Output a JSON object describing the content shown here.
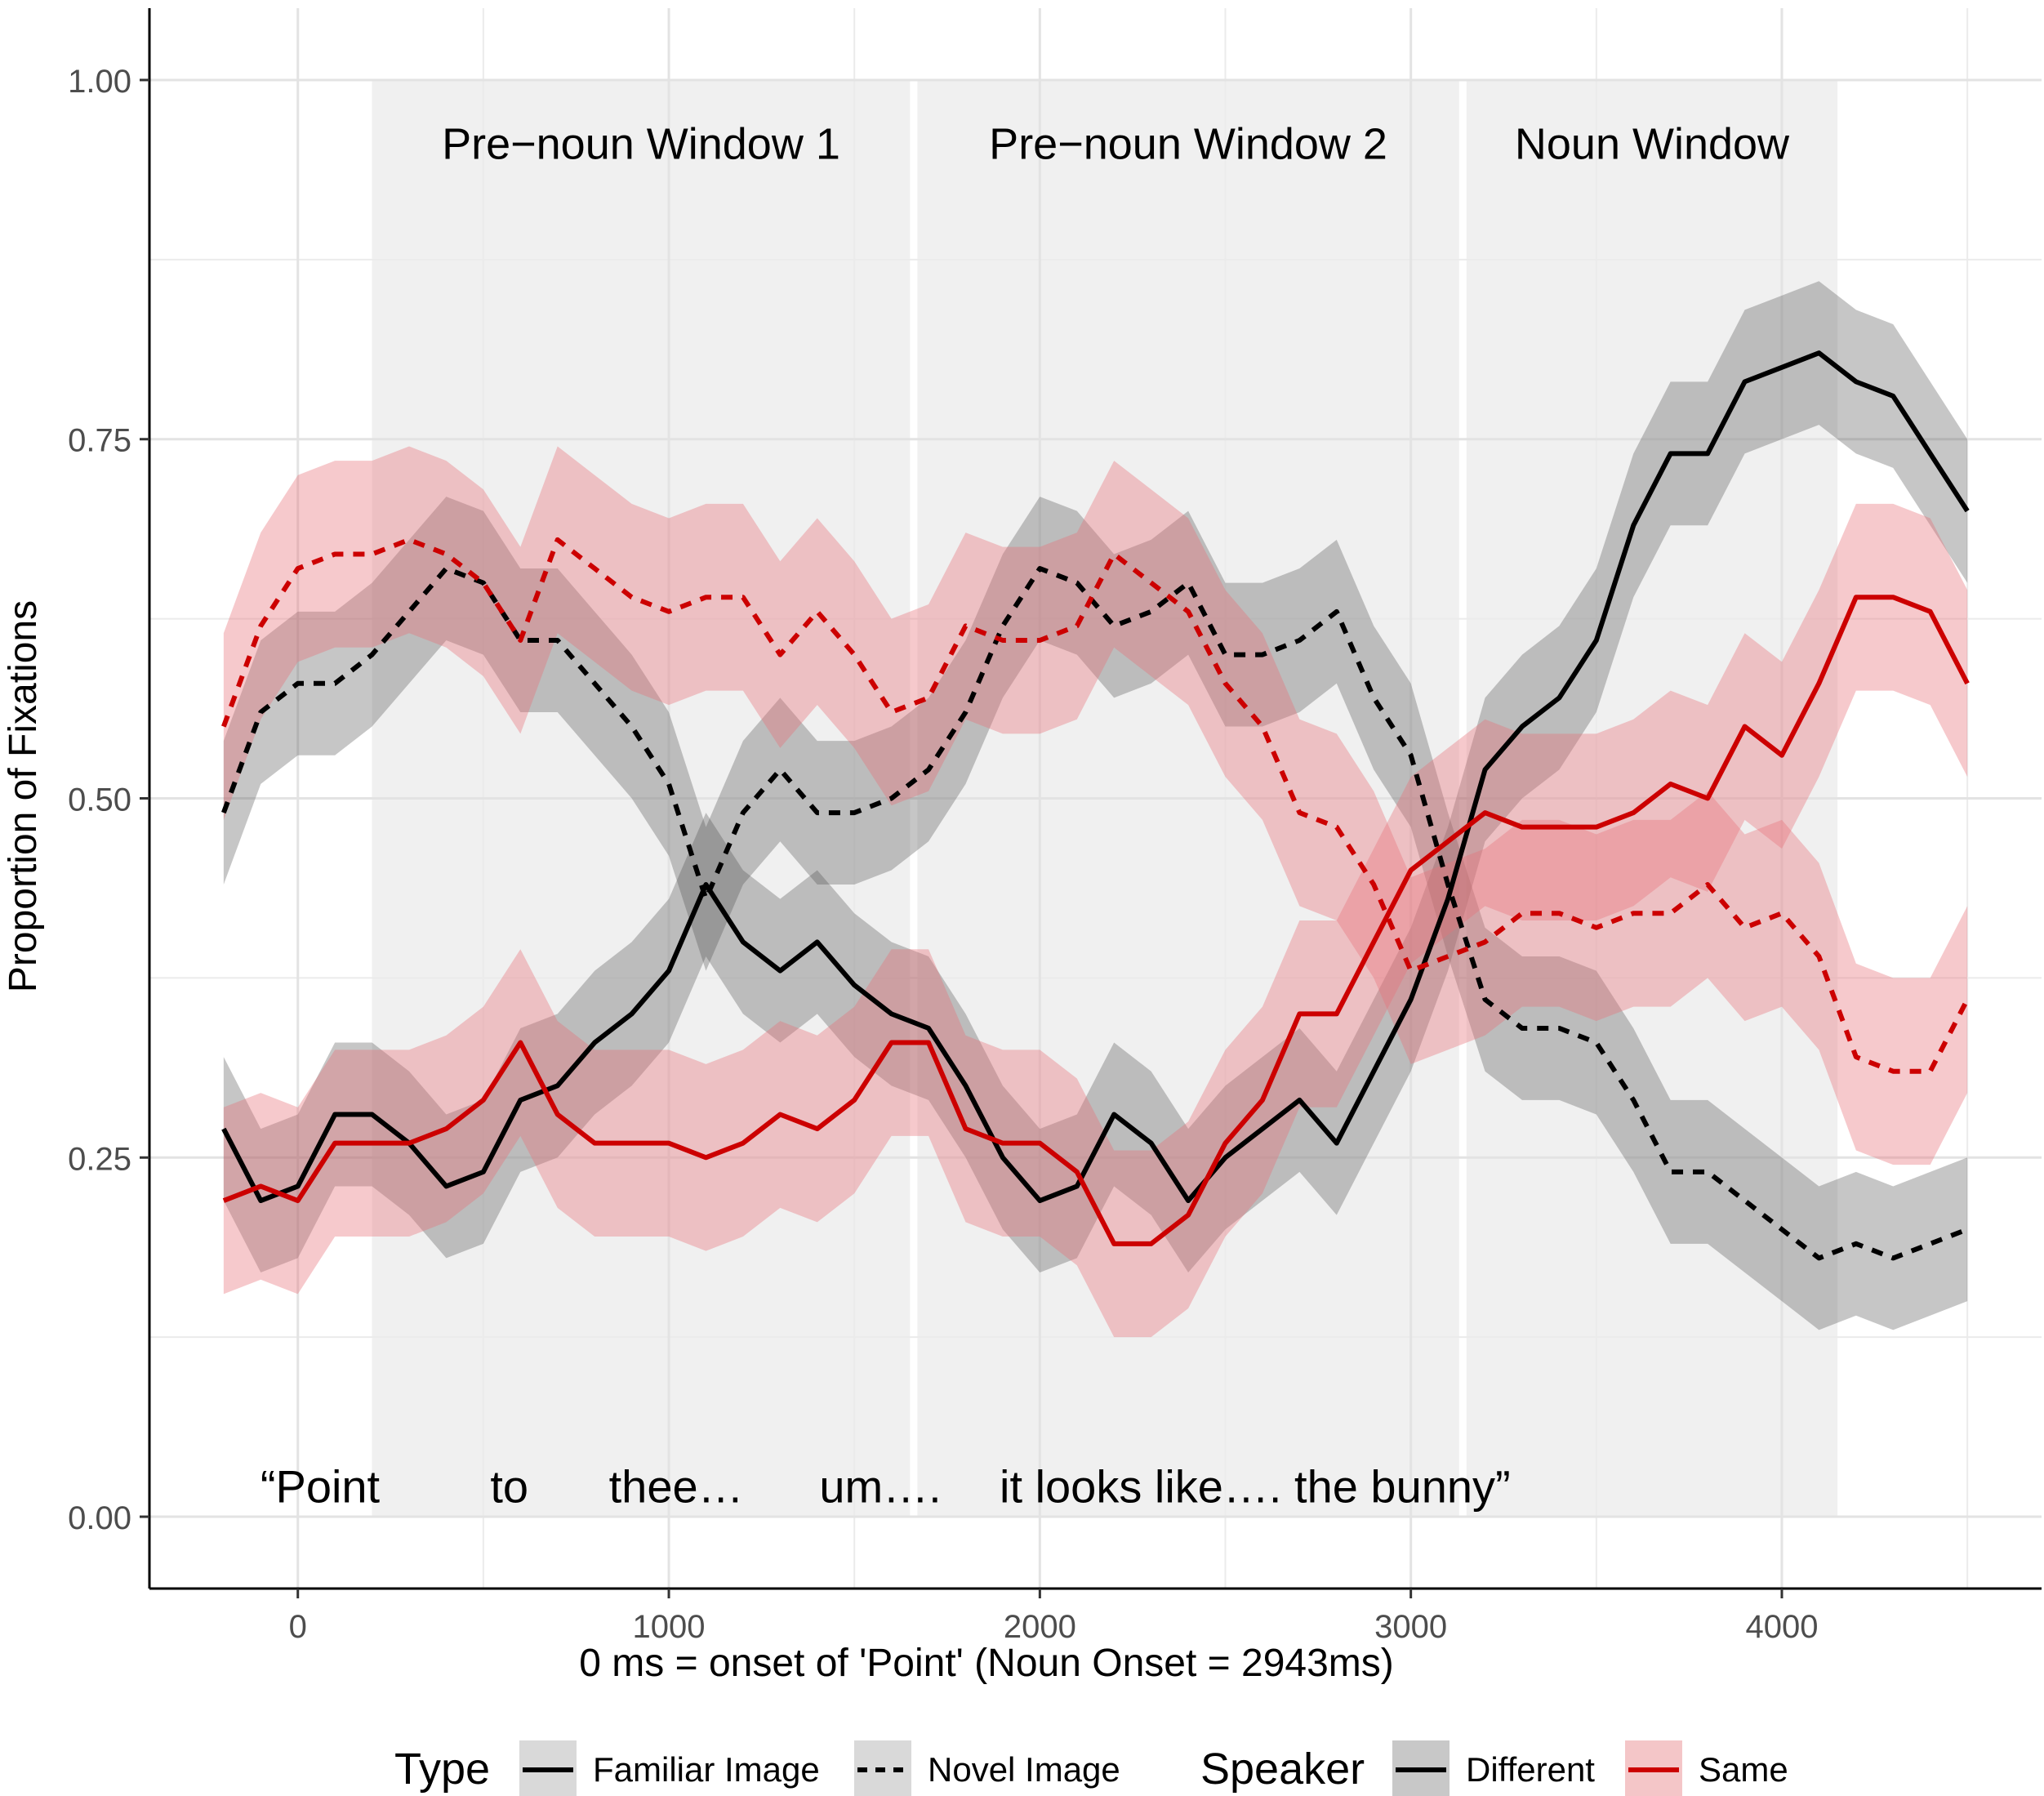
{
  "chart_data": {
    "type": "line",
    "title": "",
    "xlabel": "0 ms = onset of 'Point' (Noun Onset = 2943ms)",
    "ylabel": "Proportion of Fixations",
    "xlim": [
      -400,
      4700
    ],
    "ylim": [
      -0.05,
      1.05
    ],
    "x_ticks": [
      0,
      1000,
      2000,
      3000,
      4000
    ],
    "x_tick_labels": [
      "0",
      "1000",
      "2000",
      "3000",
      "4000"
    ],
    "y_ticks": [
      0,
      0.25,
      0.5,
      0.75,
      1
    ],
    "y_tick_labels": [
      "0.00",
      "0.25",
      "0.50",
      "0.75",
      "1.00"
    ],
    "windows": [
      {
        "label": "Pre−noun Window 1",
        "start": 200,
        "end": 1650
      },
      {
        "label": "Pre−noun Window 2",
        "start": 1670,
        "end": 3130
      },
      {
        "label": "Noun Window",
        "start": 3150,
        "end": 4150
      }
    ],
    "utterance": [
      {
        "text": "“Point",
        "x": 60
      },
      {
        "text": "to",
        "x": 570
      },
      {
        "text": "thee…",
        "x": 1020
      },
      {
        "text": "um….",
        "x": 1570
      },
      {
        "text": "it looks like…. the bunny”",
        "x": 2580
      }
    ],
    "x": [
      -200,
      -100,
      0,
      100,
      200,
      300,
      400,
      500,
      600,
      700,
      800,
      900,
      1000,
      1100,
      1200,
      1300,
      1400,
      1500,
      1600,
      1700,
      1800,
      1900,
      2000,
      2100,
      2200,
      2300,
      2400,
      2500,
      2600,
      2700,
      2800,
      2900,
      3000,
      3100,
      3200,
      3300,
      3400,
      3500,
      3600,
      3700,
      3800,
      3900,
      4000,
      4100,
      4200,
      4300,
      4400,
      4500
    ],
    "series": [
      {
        "name": "Familiar Image / Different",
        "type": "Familiar Image",
        "speaker": "Different",
        "color": "#000000",
        "dash": false,
        "values": [
          0.27,
          0.22,
          0.23,
          0.28,
          0.28,
          0.26,
          0.23,
          0.24,
          0.29,
          0.3,
          0.33,
          0.35,
          0.38,
          0.44,
          0.4,
          0.38,
          0.4,
          0.37,
          0.35,
          0.34,
          0.3,
          0.25,
          0.22,
          0.23,
          0.28,
          0.26,
          0.22,
          0.25,
          0.27,
          0.29,
          0.26,
          0.31,
          0.36,
          0.43,
          0.52,
          0.55,
          0.57,
          0.61,
          0.69,
          0.74,
          0.74,
          0.79,
          0.8,
          0.81,
          0.79,
          0.78,
          0.74,
          0.7
        ],
        "band": 0.05
      },
      {
        "name": "Novel Image / Different",
        "type": "Novel Image",
        "speaker": "Different",
        "color": "#000000",
        "dash": true,
        "values": [
          0.49,
          0.56,
          0.58,
          0.58,
          0.6,
          0.63,
          0.66,
          0.65,
          0.61,
          0.61,
          0.58,
          0.55,
          0.51,
          0.43,
          0.49,
          0.52,
          0.49,
          0.49,
          0.5,
          0.52,
          0.56,
          0.62,
          0.66,
          0.65,
          0.62,
          0.63,
          0.65,
          0.6,
          0.6,
          0.61,
          0.63,
          0.57,
          0.53,
          0.44,
          0.36,
          0.34,
          0.34,
          0.33,
          0.29,
          0.24,
          0.24,
          0.22,
          0.2,
          0.18,
          0.19,
          0.18,
          0.19,
          0.2
        ],
        "band": 0.05
      },
      {
        "name": "Familiar Image / Same",
        "type": "Familiar Image",
        "speaker": "Same",
        "color": "#cc0000",
        "dash": false,
        "values": [
          0.22,
          0.23,
          0.22,
          0.26,
          0.26,
          0.26,
          0.27,
          0.29,
          0.33,
          0.28,
          0.26,
          0.26,
          0.26,
          0.25,
          0.26,
          0.28,
          0.27,
          0.29,
          0.33,
          0.33,
          0.27,
          0.26,
          0.26,
          0.24,
          0.19,
          0.19,
          0.21,
          0.26,
          0.29,
          0.35,
          0.35,
          0.4,
          0.45,
          0.47,
          0.49,
          0.48,
          0.48,
          0.48,
          0.49,
          0.51,
          0.5,
          0.55,
          0.53,
          0.58,
          0.64,
          0.64,
          0.63,
          0.58
        ],
        "band": 0.065
      },
      {
        "name": "Novel Image / Same",
        "type": "Novel Image",
        "speaker": "Same",
        "color": "#cc0000",
        "dash": true,
        "values": [
          0.55,
          0.62,
          0.66,
          0.67,
          0.67,
          0.68,
          0.67,
          0.65,
          0.61,
          0.68,
          0.66,
          0.64,
          0.63,
          0.64,
          0.64,
          0.6,
          0.63,
          0.6,
          0.56,
          0.57,
          0.62,
          0.61,
          0.61,
          0.62,
          0.67,
          0.65,
          0.63,
          0.58,
          0.55,
          0.49,
          0.48,
          0.44,
          0.38,
          0.39,
          0.4,
          0.42,
          0.42,
          0.41,
          0.42,
          0.42,
          0.44,
          0.41,
          0.42,
          0.39,
          0.32,
          0.31,
          0.31,
          0.36
        ],
        "band": 0.065
      }
    ],
    "legend": {
      "placement": "bottom",
      "type_title": "Type",
      "type_items": [
        {
          "label": "Familiar Image",
          "dash": false
        },
        {
          "label": "Novel Image",
          "dash": true
        }
      ],
      "speaker_title": "Speaker",
      "speaker_items": [
        {
          "label": "Different",
          "color": "#000000"
        },
        {
          "label": "Same",
          "color": "#cc0000"
        }
      ]
    }
  }
}
